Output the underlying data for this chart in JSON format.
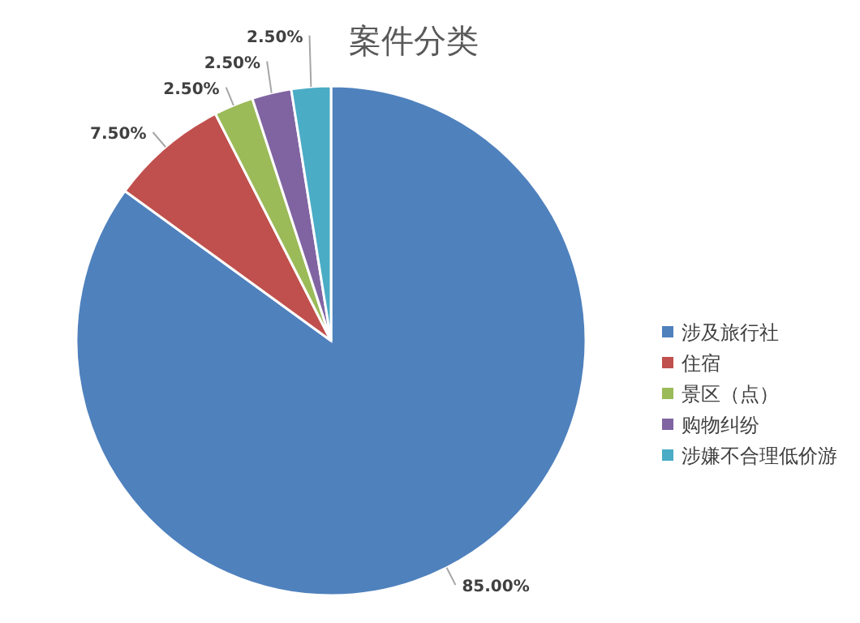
{
  "chart_data": {
    "type": "pie",
    "title": "案件分类",
    "categories": [
      "涉及旅行社",
      "住宿",
      "景区（点）",
      "购物纠纷",
      "涉嫌不合理低价游"
    ],
    "values": [
      85,
      7.5,
      2.5,
      2.5,
      2.5
    ],
    "colors": [
      "#4f81bd",
      "#c0504d",
      "#9bbb59",
      "#8064a2",
      "#4bacc6"
    ],
    "value_labels": [
      "85.00%",
      "7.50%",
      "2.50%",
      "2.50%",
      "2.50%"
    ],
    "legend": "right"
  }
}
